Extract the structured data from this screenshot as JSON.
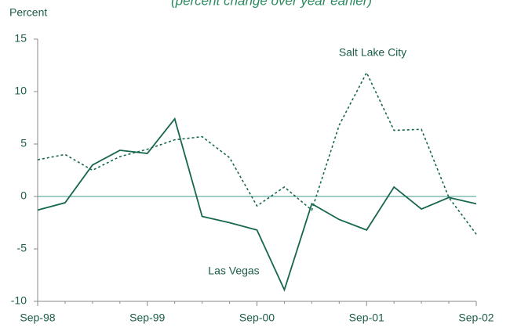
{
  "chart_data": {
    "type": "line",
    "subtitle": "(percent change over year earlier)",
    "y_label": "Percent",
    "categories": [
      "Sep-98",
      null,
      null,
      null,
      "Sep-99",
      null,
      null,
      null,
      "Sep-00",
      null,
      null,
      null,
      "Sep-01",
      null,
      null,
      null,
      "Sep-02"
    ],
    "series": [
      {
        "name": "Las Vegas",
        "color": "#17664f",
        "line_style": "solid",
        "values": [
          -1.3,
          -0.6,
          3.0,
          4.4,
          4.1,
          7.4,
          -1.9,
          -2.5,
          -3.2,
          -8.9,
          -0.7,
          -2.2,
          -3.2,
          0.9,
          -1.2,
          -0.1,
          -0.7
        ]
      },
      {
        "name": "Salt Lake City",
        "color": "#17664f",
        "line_style": "dotted",
        "values": [
          3.5,
          4.0,
          2.5,
          3.8,
          4.5,
          5.4,
          5.7,
          3.7,
          -0.9,
          0.9,
          -1.3,
          6.8,
          11.8,
          6.3,
          6.4,
          -0.1,
          -3.6
        ]
      }
    ],
    "ylim": [
      -10,
      15
    ],
    "yticks": [
      -10,
      -5,
      0,
      5,
      10,
      15
    ],
    "zero_line_color": "#3a9a8a"
  }
}
